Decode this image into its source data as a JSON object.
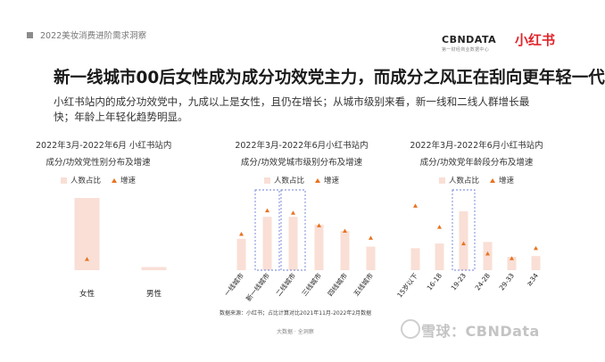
{
  "header": {
    "report": "2022美妆消费进阶需求洞察"
  },
  "logos": {
    "cbn": "CBNDATA",
    "cbn_sub": "第一财经商业数据中心",
    "xhs": "小红书"
  },
  "title": "新一线城市00后女性成为成分功效党主力，而成分之风正在刮向更年轻一代",
  "description": "小红书站内的成分功效党中，九成以上是女性，且仍在增长；从城市级别来看，新一线和二线人群增长最快；年龄上年轻化趋势明显。",
  "legend": {
    "share": "人数占比",
    "growth": "增速"
  },
  "colors": {
    "bar": "#f9dfd6",
    "marker": "#e8731f",
    "highlight": "#6e7fd6",
    "text": "#222222"
  },
  "chart_data": [
    {
      "type": "bar",
      "title": "2022年3月-2022年6月 小红书站内",
      "subtitle": "成分/功效党性别分布及增速",
      "categories": [
        "女性",
        "男性"
      ],
      "series": [
        {
          "name": "人数占比",
          "values": [
            92,
            4
          ]
        },
        {
          "name": "增速",
          "values": [
            14,
            0
          ]
        }
      ],
      "highlight": []
    },
    {
      "type": "bar",
      "title": "2022年3月-2022年6月小红书站内",
      "subtitle": "成分/功效党城市级别分布及增速",
      "categories": [
        "一线城市",
        "新一线城市",
        "二线城市",
        "三线城市",
        "四线城市",
        "五线城市"
      ],
      "series": [
        {
          "name": "人数占比",
          "values": [
            40,
            68,
            68,
            58,
            50,
            30
          ]
        },
        {
          "name": "增速",
          "values": [
            46,
            76,
            73,
            57,
            50,
            41
          ]
        }
      ],
      "highlight": [
        1,
        2
      ]
    },
    {
      "type": "bar",
      "title": "2022年3月-2022年6月小红书站内",
      "subtitle": "成分/功效党年龄段分布及增速",
      "categories": [
        "15岁以下",
        "16-18",
        "19-23",
        "24-28",
        "29-33",
        "≥34"
      ],
      "series": [
        {
          "name": "人数占比",
          "values": [
            28,
            34,
            75,
            36,
            17,
            18
          ]
        },
        {
          "name": "增速",
          "values": [
            82,
            55,
            34,
            21,
            15,
            28
          ]
        }
      ],
      "highlight": [
        2
      ]
    }
  ],
  "source": "数据来源：小红书；占比计算对比2021年11月-2022年2月数据",
  "footer": "大数据 · 全洞察",
  "watermark": "雪球：CBNData"
}
